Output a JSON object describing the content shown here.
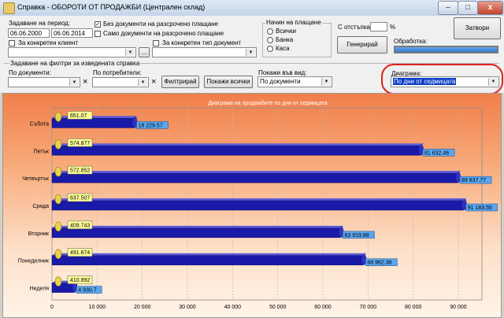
{
  "window": {
    "title": "Справка - ОБОРОТИ ОТ ПРОДАЖБИ (Централен склад)",
    "min": "–",
    "max": "□",
    "close": "x"
  },
  "period": {
    "label": "Задаване на период:",
    "from": "06.06.2000",
    "to": "06.06.2014"
  },
  "options": {
    "client_label": "За конкретен клиент",
    "client_value": "",
    "browse_label": "...",
    "no_installment_label": "Без документи на разсрочено плащане",
    "no_installment_checked": "✓",
    "only_installment_label": "Само документи на разсрочено плащане",
    "doc_type_label": "За конкретен тип документ",
    "doc_type_value": ""
  },
  "payment": {
    "label": "Начин на плащане",
    "options": [
      "Всички",
      "Банка",
      "Каса"
    ]
  },
  "discount": {
    "label": "С отстъпка:",
    "value": "",
    "unit": "%"
  },
  "actions": {
    "generate": "Генерирай",
    "close": "Затвори",
    "processing_label": "Обработка:",
    "progress_fraction": 1.0
  },
  "filters": {
    "legend": "Задаване на филтри за изведената справка",
    "by_documents_label": "По документи:",
    "by_documents_value": "",
    "by_users_label": "По потребители:",
    "by_users_value": "",
    "clear_icon": "×",
    "filter_button": "Филтрирай",
    "show_all_button": "Покажи всички",
    "show_as_label": "Покажи във вид:",
    "show_as_value": "По документи",
    "diagram_label": "Диаграма:",
    "diagram_value": "По дни от седмицата"
  },
  "colors": {
    "accent": "#0a3cc8",
    "highlight": "#e0211c",
    "bar": "#1a1aa8"
  },
  "chart_data": {
    "type": "bar",
    "orientation": "horizontal",
    "title": "Диаграма на продажбите по дни от седмицата",
    "categories": [
      "Събота",
      "Петък",
      "Четвъртък",
      "Сряда",
      "Вторник",
      "Понеделник",
      "Неделя"
    ],
    "values": [
      18229.57,
      81632.46,
      89837.77,
      91183.55,
      63919.88,
      68962.38,
      4930.7
    ],
    "value_labels": [
      "18 229.57",
      "81 632.46",
      "89 837.77",
      "91 183.55",
      "63 919.88",
      "68 962.38",
      "4 930.7"
    ],
    "counts": [
      "651.07",
      "574.877",
      "572.852",
      "637.507",
      "409.743",
      "491.874",
      "410.892"
    ],
    "xlim": [
      0,
      90000
    ],
    "ticks": [
      "0",
      "10 000",
      "20 000",
      "30 000",
      "40 000",
      "50 000",
      "60 000",
      "70 000",
      "80 000",
      "90 000"
    ],
    "grid": true
  }
}
